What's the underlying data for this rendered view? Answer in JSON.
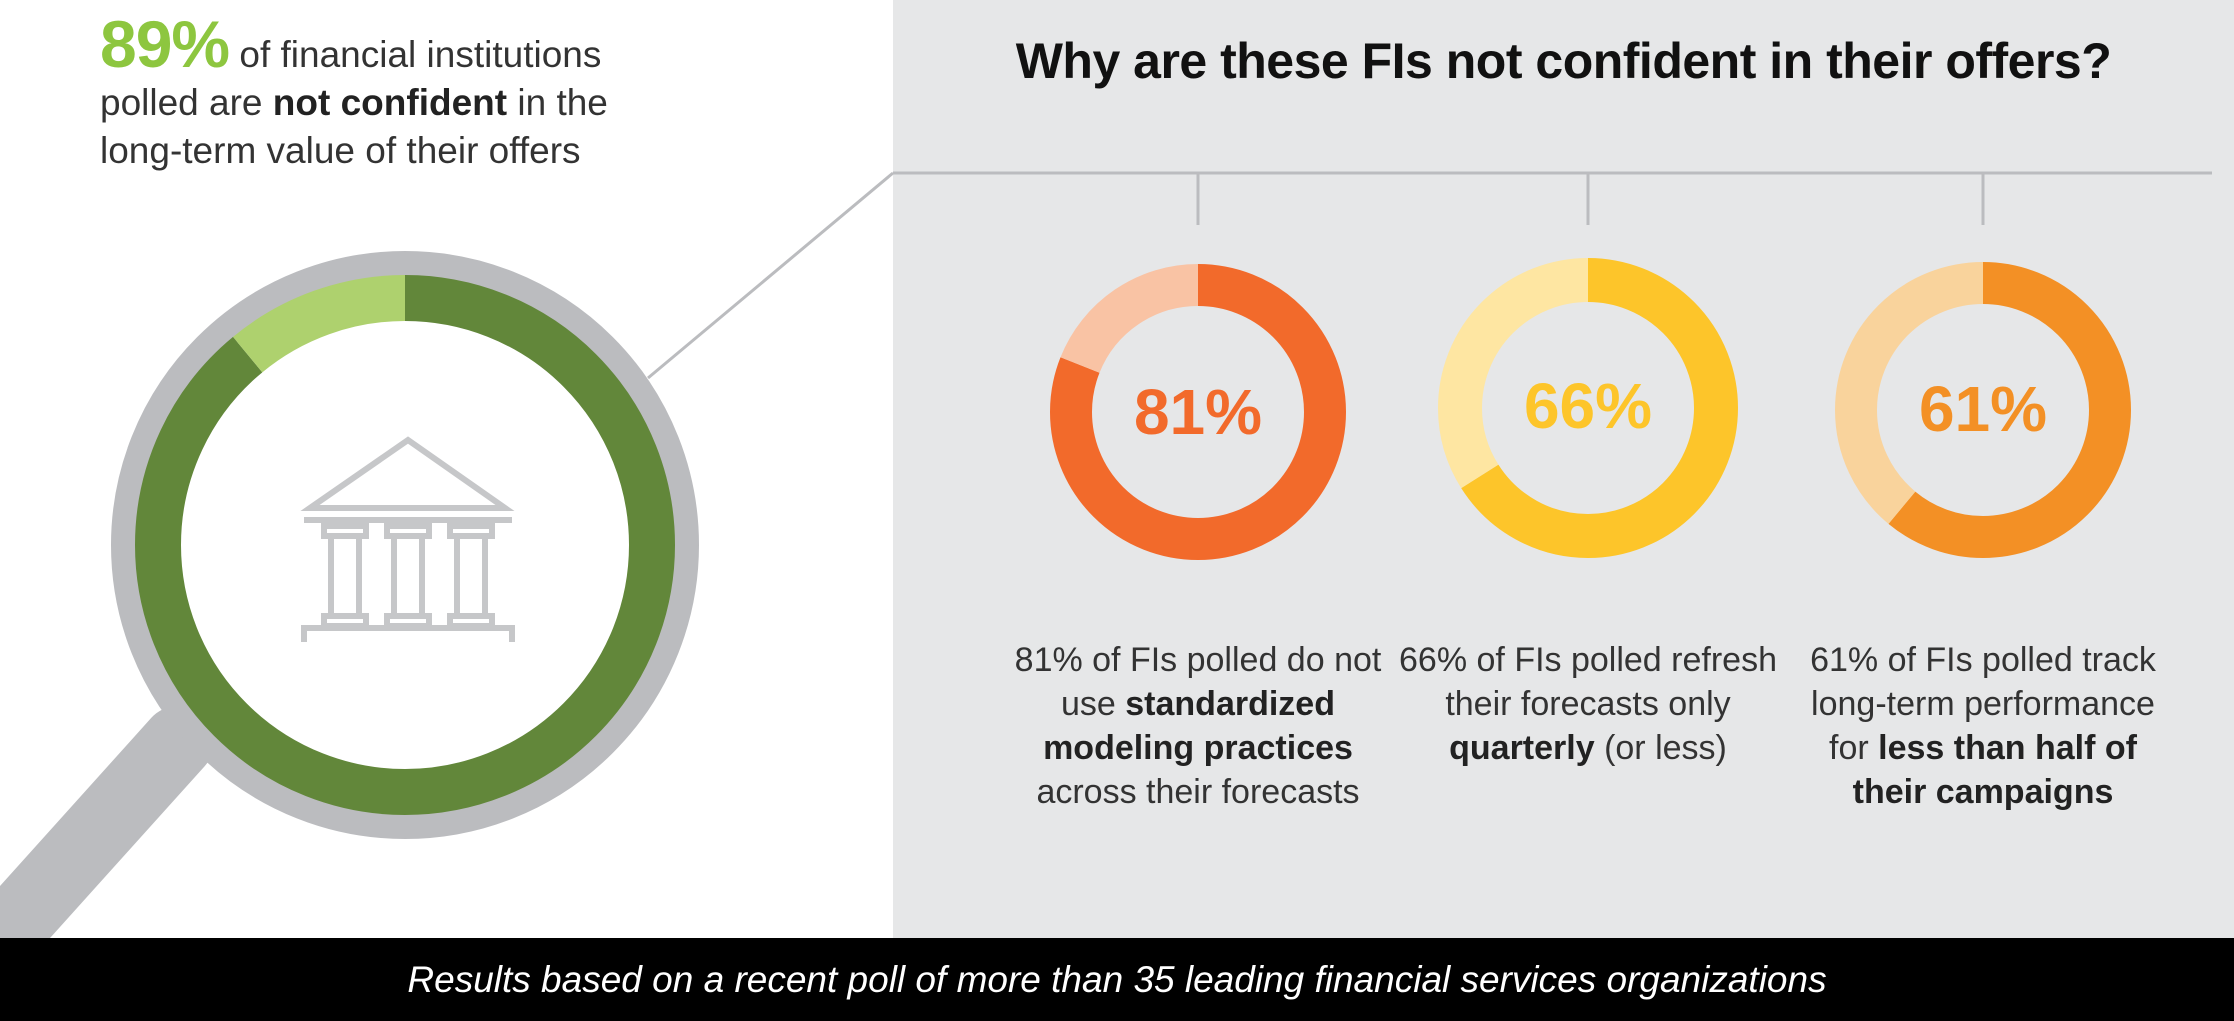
{
  "intro": {
    "pct": "89%",
    "text1": " of financial institutions",
    "text2": "polled are ",
    "bold": "not confident",
    "text3": " in the",
    "text4": "long-term value of their offers"
  },
  "heading": "Why are these FIs not confident in their offers?",
  "footer": "Results based on a recent poll of more than 35 leading financial services organizations",
  "captions": [
    {
      "pre": "81% of FIs polled do not use ",
      "bold": "standardized modeling practices",
      "post": " across their forecasts"
    },
    {
      "pre": "66% of FIs polled refresh their forecasts only ",
      "bold": "quarterly",
      "post": " (or less)"
    },
    {
      "pre": "61% of FIs polled track long-term performance for ",
      "bold": "less than half of their campaigns",
      "post": ""
    }
  ],
  "chart_data": [
    {
      "type": "pie",
      "labels": [
        "not confident",
        "other"
      ],
      "values": [
        89,
        11
      ],
      "colors": [
        "#62873a",
        "#aed16e"
      ]
    },
    {
      "type": "pie",
      "labels": [
        "do not use standardized modeling practices",
        "other"
      ],
      "values": [
        81,
        19
      ],
      "center_label": "81%",
      "colors": [
        "#f26a2b",
        "#f9c3a4"
      ]
    },
    {
      "type": "pie",
      "labels": [
        "refresh forecasts only quarterly (or less)",
        "other"
      ],
      "values": [
        66,
        34
      ],
      "center_label": "66%",
      "colors": [
        "#fdc52a",
        "#fee6a2"
      ]
    },
    {
      "type": "pie",
      "labels": [
        "track long-term performance for less than half of campaigns",
        "other"
      ],
      "values": [
        61,
        39
      ],
      "center_label": "61%",
      "colors": [
        "#f39025",
        "#f9d39c"
      ]
    }
  ]
}
